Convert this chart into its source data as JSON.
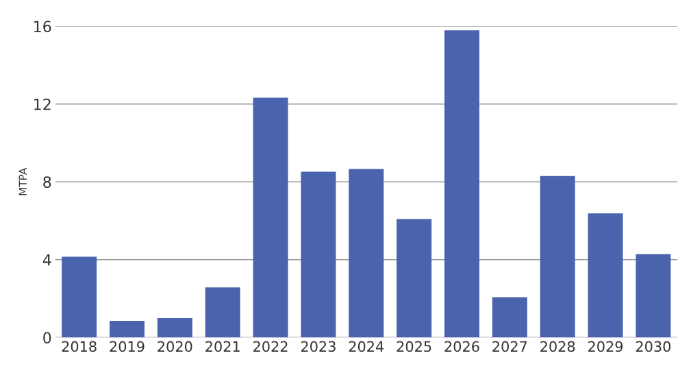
{
  "chart_data": {
    "type": "bar",
    "ylabel": "MTPA",
    "categories": [
      "2018",
      "2019",
      "2020",
      "2021",
      "2022",
      "2023",
      "2024",
      "2025",
      "2026",
      "2027",
      "2028",
      "2029",
      "2030"
    ],
    "values": [
      4.15,
      0.86,
      1.0,
      2.57,
      12.33,
      8.52,
      8.66,
      6.09,
      15.79,
      2.07,
      8.3,
      6.38,
      4.28
    ],
    "color": "#4a63ad",
    "ylim": [
      0,
      16
    ],
    "yticks": [
      0,
      4,
      8,
      12,
      16
    ],
    "grid": "y"
  }
}
